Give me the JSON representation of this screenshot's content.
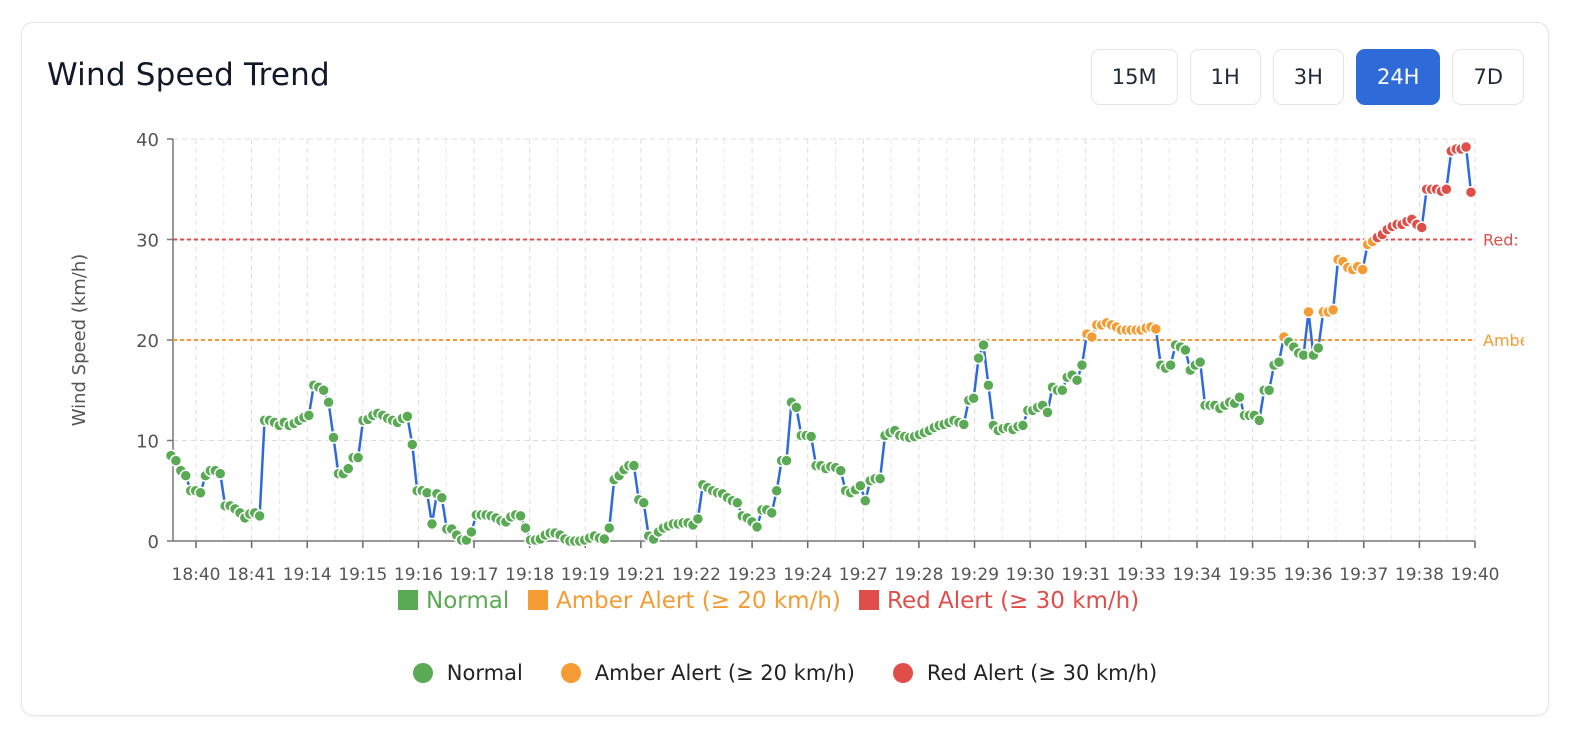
{
  "header": {
    "title": "Wind Speed Trend",
    "ranges": [
      "15M",
      "1H",
      "3H",
      "24H",
      "7D"
    ],
    "active_range": "24H"
  },
  "colors": {
    "line": "#2f6bd8",
    "normal": "#5aaa55",
    "amber": "#f49c33",
    "red": "#e04e4a",
    "grid": "#dddddd"
  },
  "legend_bottom": [
    {
      "label": "Normal",
      "color": "#5aaa55"
    },
    {
      "label": "Amber Alert (≥ 20 km/h)",
      "color": "#f49c33"
    },
    {
      "label": "Red Alert (≥ 30 km/h)",
      "color": "#e04e4a"
    }
  ],
  "chart_data": {
    "type": "line",
    "title": "",
    "xlabel": "",
    "ylabel": "Wind Speed (km/h)",
    "ylim": [
      0,
      40
    ],
    "yticks": [
      0,
      10,
      20,
      30,
      40
    ],
    "grid": true,
    "x_tick_labels": [
      "18:40",
      "18:41",
      "19:14",
      "19:15",
      "19:16",
      "19:17",
      "19:18",
      "19:19",
      "19:21",
      "19:22",
      "19:23",
      "19:24",
      "19:27",
      "19:28",
      "19:29",
      "19:30",
      "19:31",
      "19:33",
      "19:34",
      "19:35",
      "19:36",
      "19:37",
      "19:38",
      "19:40"
    ],
    "thresholds": [
      {
        "name": "Red:",
        "value": 30,
        "color": "#e04e4a"
      },
      {
        "name": "Amber",
        "value": 20,
        "color": "#f49c33"
      }
    ],
    "legend_top": [
      {
        "label": "Normal",
        "color": "#5aaa55"
      },
      {
        "label": "Amber Alert (≥ 20 km/h)",
        "color": "#f49c33"
      },
      {
        "label": "Red Alert (≥ 30 km/h)",
        "color": "#e04e4a"
      }
    ],
    "series": [
      {
        "values": [
          8.5,
          8.0,
          7.0,
          6.5,
          5.0,
          5.0,
          4.8,
          6.5,
          7.0,
          7.0,
          6.7,
          3.5,
          3.5,
          3.2,
          2.8,
          2.3,
          2.7,
          2.8,
          2.5,
          12.0,
          12.0,
          11.8,
          11.5,
          11.8,
          11.5,
          11.7,
          12.0,
          12.3,
          12.5,
          15.5,
          15.3,
          15.0,
          13.8,
          10.3,
          6.7,
          6.7,
          7.2,
          8.3,
          8.3,
          12.0,
          12.1,
          12.5,
          12.7,
          12.5,
          12.2,
          12.0,
          11.8,
          12.2,
          12.4,
          9.6,
          5.0,
          5.0,
          4.8,
          1.7,
          4.7,
          4.3,
          1.2,
          1.2,
          0.6,
          0.1,
          0.1,
          0.9,
          2.6,
          2.6,
          2.6,
          2.5,
          2.3,
          2.0,
          1.9,
          2.4,
          2.6,
          2.5,
          1.3,
          0.1,
          0.1,
          0.2,
          0.6,
          0.8,
          0.8,
          0.6,
          0.2,
          0.0,
          0.0,
          0.0,
          0.1,
          0.3,
          0.5,
          0.3,
          0.2,
          1.3,
          6.1,
          6.5,
          7.1,
          7.5,
          7.5,
          4.1,
          3.8,
          0.5,
          0.2,
          0.9,
          1.3,
          1.5,
          1.7,
          1.7,
          1.8,
          1.8,
          1.6,
          2.2,
          5.6,
          5.3,
          5.0,
          4.8,
          4.7,
          4.3,
          4.0,
          3.8,
          2.5,
          2.3,
          1.9,
          1.4,
          3.1,
          3.1,
          2.8,
          5.0,
          8.0,
          8.0,
          13.8,
          13.3,
          10.5,
          10.5,
          10.4,
          7.5,
          7.5,
          7.2,
          7.4,
          7.3,
          7.0,
          5.0,
          4.8,
          5.1,
          5.5,
          4.0,
          6.0,
          6.2,
          6.2,
          10.5,
          10.8,
          11.0,
          10.5,
          10.4,
          10.3,
          10.4,
          10.6,
          10.8,
          11.0,
          11.3,
          11.5,
          11.6,
          11.8,
          12.0,
          11.8,
          11.6,
          14.0,
          14.2,
          18.2,
          19.5,
          15.5,
          11.5,
          11.0,
          11.2,
          11.3,
          11.1,
          11.4,
          11.5,
          13.0,
          13.0,
          13.3,
          13.5,
          12.8,
          15.3,
          15.0,
          15.0,
          16.3,
          16.5,
          16.0,
          17.5,
          20.6,
          20.3,
          21.5,
          21.5,
          21.7,
          21.5,
          21.3,
          21.0,
          21.0,
          21.0,
          21.0,
          21.0,
          21.2,
          21.3,
          21.1,
          17.5,
          17.2,
          17.5,
          19.5,
          19.3,
          19.0,
          17.0,
          17.5,
          17.8,
          13.5,
          13.5,
          13.5,
          13.2,
          13.5,
          13.8,
          13.7,
          14.3,
          12.5,
          12.5,
          12.5,
          12.0,
          15.0,
          15.0,
          17.5,
          17.8,
          20.3,
          19.8,
          19.3,
          18.7,
          18.5,
          22.8,
          18.5,
          19.2,
          22.8,
          22.8,
          23.0,
          28.0,
          27.8,
          27.2,
          27.0,
          27.3,
          27.0,
          29.5,
          29.8,
          30.2,
          30.5,
          31.0,
          31.3,
          31.5,
          31.5,
          31.8,
          32.0,
          31.5,
          31.2,
          35.0,
          35.0,
          35.0,
          34.8,
          35.0,
          38.8,
          39.0,
          39.0,
          39.2,
          34.7
        ]
      }
    ]
  }
}
